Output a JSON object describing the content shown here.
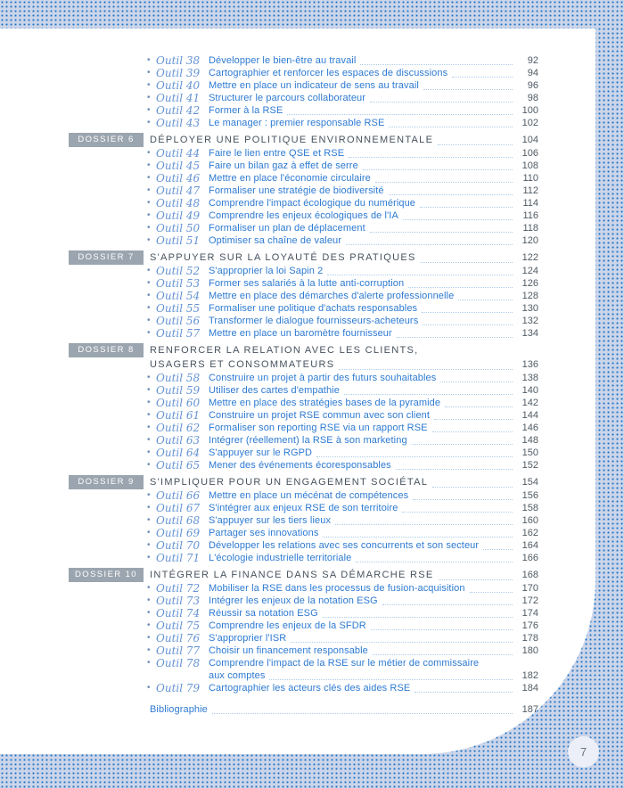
{
  "page_number": "7",
  "colors": {
    "pattern_bg": "#ccd5e9",
    "pattern_dot": "#1a6dc0",
    "badge_bg": "#9ba5af",
    "badge_text": "#ffffff",
    "section_title_text": "#47525e",
    "item_text": "#2d7ad2",
    "tool_label_text": "#6493d3",
    "page_ref_text": "#4f5a64",
    "leader_dots": "#aecdea",
    "circle_bg": "#eceff8"
  },
  "toc": {
    "lead_items": [
      {
        "label": "Outil 38",
        "title_lines": [
          "Développer le bien-être au travail"
        ],
        "page": "92"
      },
      {
        "label": "Outil 39",
        "title_lines": [
          "Cartographier et renforcer les espaces de discussions"
        ],
        "page": "94"
      },
      {
        "label": "Outil 40",
        "title_lines": [
          "Mettre en place un indicateur de sens au travail"
        ],
        "page": "96"
      },
      {
        "label": "Outil 41",
        "title_lines": [
          "Structurer le parcours collaborateur"
        ],
        "page": "98"
      },
      {
        "label": "Outil 42",
        "title_lines": [
          "Former à la RSE"
        ],
        "page": "100"
      },
      {
        "label": "Outil 43",
        "title_lines": [
          "Le manager : premier responsable RSE"
        ],
        "page": "102"
      }
    ],
    "sections": [
      {
        "badge": "DOSSIER 6",
        "title_lines": [
          "DÉPLOYER UNE POLITIQUE ENVIRONNEMENTALE"
        ],
        "page": "104",
        "items": [
          {
            "label": "Outil 44",
            "title_lines": [
              "Faire le lien entre QSE et RSE"
            ],
            "page": "106"
          },
          {
            "label": "Outil 45",
            "title_lines": [
              "Faire un bilan gaz à effet de serre"
            ],
            "page": "108"
          },
          {
            "label": "Outil 46",
            "title_lines": [
              "Mettre en place l'économie circulaire"
            ],
            "page": "110"
          },
          {
            "label": "Outil 47",
            "title_lines": [
              "Formaliser une stratégie de biodiversité"
            ],
            "page": "112"
          },
          {
            "label": "Outil 48",
            "title_lines": [
              "Comprendre l'impact écologique du numérique"
            ],
            "page": "114"
          },
          {
            "label": "Outil 49",
            "title_lines": [
              "Comprendre les enjeux écologiques de l'IA"
            ],
            "page": "116"
          },
          {
            "label": "Outil 50",
            "title_lines": [
              "Formaliser un plan de déplacement"
            ],
            "page": "118"
          },
          {
            "label": "Outil 51",
            "title_lines": [
              "Optimiser sa chaîne de valeur"
            ],
            "page": "120"
          }
        ]
      },
      {
        "badge": "DOSSIER 7",
        "title_lines": [
          "S'APPUYER SUR LA LOYAUTÉ DES PRATIQUES"
        ],
        "page": "122",
        "items": [
          {
            "label": "Outil 52",
            "title_lines": [
              "S'approprier la loi Sapin 2"
            ],
            "page": "124"
          },
          {
            "label": "Outil 53",
            "title_lines": [
              "Former ses salariés à la lutte anti-corruption"
            ],
            "page": "126"
          },
          {
            "label": "Outil 54",
            "title_lines": [
              "Mettre en place des démarches d'alerte professionnelle"
            ],
            "page": "128"
          },
          {
            "label": "Outil 55",
            "title_lines": [
              "Formaliser une politique d'achats responsables"
            ],
            "page": "130"
          },
          {
            "label": "Outil 56",
            "title_lines": [
              "Transformer le dialogue fournisseurs-acheteurs"
            ],
            "page": "132"
          },
          {
            "label": "Outil 57",
            "title_lines": [
              "Mettre en place un baromètre fournisseur"
            ],
            "page": "134"
          }
        ]
      },
      {
        "badge": "DOSSIER 8",
        "title_lines": [
          "RENFORCER LA RELATION AVEC LES CLIENTS,",
          "USAGERS ET CONSOMMATEURS"
        ],
        "page": "136",
        "items": [
          {
            "label": "Outil 58",
            "title_lines": [
              "Construire un projet à partir des futurs souhaitables"
            ],
            "page": "138"
          },
          {
            "label": "Outil 59",
            "title_lines": [
              "Utiliser des cartes d'empathie"
            ],
            "page": "140"
          },
          {
            "label": "Outil 60",
            "title_lines": [
              "Mettre en place des stratégies bases de la pyramide"
            ],
            "page": "142"
          },
          {
            "label": "Outil 61",
            "title_lines": [
              "Construire un projet RSE commun avec son client"
            ],
            "page": "144"
          },
          {
            "label": "Outil 62",
            "title_lines": [
              "Formaliser son reporting RSE via un rapport RSE"
            ],
            "page": "146"
          },
          {
            "label": "Outil 63",
            "title_lines": [
              "Intégrer (réellement) la RSE à son marketing"
            ],
            "page": "148"
          },
          {
            "label": "Outil 64",
            "title_lines": [
              "S'appuyer sur le RGPD"
            ],
            "page": "150"
          },
          {
            "label": "Outil 65",
            "title_lines": [
              "Mener des événements écoresponsables"
            ],
            "page": "152"
          }
        ]
      },
      {
        "badge": "DOSSIER 9",
        "title_lines": [
          "S'IMPLIQUER POUR UN ENGAGEMENT SOCIÉTAL"
        ],
        "page": "154",
        "items": [
          {
            "label": "Outil 66",
            "title_lines": [
              "Mettre en place un mécénat de compétences"
            ],
            "page": "156"
          },
          {
            "label": "Outil 67",
            "title_lines": [
              "S'intégrer aux enjeux RSE de son territoire"
            ],
            "page": "158"
          },
          {
            "label": "Outil 68",
            "title_lines": [
              "S'appuyer sur les tiers lieux"
            ],
            "page": "160"
          },
          {
            "label": "Outil 69",
            "title_lines": [
              "Partager ses innovations"
            ],
            "page": "162"
          },
          {
            "label": "Outil 70",
            "title_lines": [
              "Développer les relations avec ses concurrents et son secteur"
            ],
            "page": "164"
          },
          {
            "label": "Outil 71",
            "title_lines": [
              "L'écologie industrielle territoriale"
            ],
            "page": "166"
          }
        ]
      },
      {
        "badge": "DOSSIER 10",
        "title_lines": [
          "INTÉGRER LA FINANCE DANS SA DÉMARCHE RSE"
        ],
        "page": "168",
        "items": [
          {
            "label": "Outil 72",
            "title_lines": [
              "Mobiliser la RSE dans les processus de fusion-acquisition"
            ],
            "page": "170"
          },
          {
            "label": "Outil 73",
            "title_lines": [
              "Intégrer les enjeux de la notation ESG"
            ],
            "page": "172"
          },
          {
            "label": "Outil 74",
            "title_lines": [
              "Réussir sa notation ESG"
            ],
            "page": "174"
          },
          {
            "label": "Outil 75",
            "title_lines": [
              "Comprendre les enjeux de la SFDR"
            ],
            "page": "176"
          },
          {
            "label": "Outil 76",
            "title_lines": [
              "S'approprier l'ISR"
            ],
            "page": "178"
          },
          {
            "label": "Outil 77",
            "title_lines": [
              "Choisir un financement responsable"
            ],
            "page": "180"
          },
          {
            "label": "Outil 78",
            "title_lines": [
              "Comprendre l'impact de la RSE sur le métier de commissaire",
              "aux comptes"
            ],
            "page": "182"
          },
          {
            "label": "Outil 79",
            "title_lines": [
              "Cartographier les acteurs clés des aides RSE"
            ],
            "page": "184"
          }
        ]
      }
    ],
    "closing_items": [
      {
        "title_lines": [
          "Bibliographie"
        ],
        "page": "187"
      }
    ]
  }
}
